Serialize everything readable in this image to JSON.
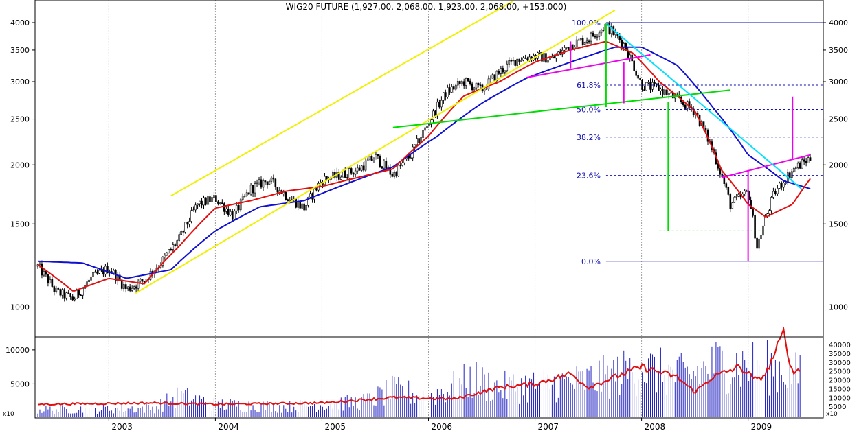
{
  "title": "WIG20 FUTURE (1,927.00, 2,068.00, 1,923.00, 2,068.00, +153.000)",
  "colors": {
    "background": "#ffffff",
    "frame": "#000000",
    "grid": "#a0a0a0",
    "candles": "#000000",
    "ma_short": "#e01010",
    "ma_long": "#1010d0",
    "channel": "#f0f000",
    "trend_green": "#00dd00",
    "trend_magenta": "#ee00ee",
    "trend_cyan": "#00e0ff",
    "fib": "#1010b0",
    "volume_bars": "#2020c0",
    "volume_avg": "#e01010"
  },
  "chart_data": [
    {
      "type": "candlestick",
      "title": "WIG20 FUTURE (1,927.00, 2,068.00, 1,923.00, 2,068.00, +153.000)",
      "x_ticks": [
        "2003",
        "2004",
        "2005",
        "2006",
        "2007",
        "2008",
        "2009"
      ],
      "x_range": [
        "2002-05",
        "2009-09"
      ],
      "y_ticks": [
        1000,
        1500,
        2000,
        2500,
        3000,
        3500,
        4000
      ],
      "y_scale": "log",
      "ylim": [
        900,
        4150
      ],
      "last": {
        "open": 1927,
        "high": 2068,
        "low": 1923,
        "close": 2068,
        "change": 153
      },
      "price_path": [
        [
          "2002-05",
          1220
        ],
        [
          "2002-07",
          1080
        ],
        [
          "2002-09",
          1040
        ],
        [
          "2002-11",
          1150
        ],
        [
          "2003-01",
          1210
        ],
        [
          "2003-03",
          1090
        ],
        [
          "2003-05",
          1140
        ],
        [
          "2003-07",
          1250
        ],
        [
          "2003-09",
          1400
        ],
        [
          "2003-11",
          1650
        ],
        [
          "2004-01",
          1700
        ],
        [
          "2004-03",
          1560
        ],
        [
          "2004-05",
          1780
        ],
        [
          "2004-07",
          1860
        ],
        [
          "2004-09",
          1720
        ],
        [
          "2004-11",
          1620
        ],
        [
          "2005-01",
          1860
        ],
        [
          "2005-03",
          1900
        ],
        [
          "2005-05",
          1950
        ],
        [
          "2005-07",
          2080
        ],
        [
          "2005-09",
          1900
        ],
        [
          "2005-11",
          2100
        ],
        [
          "2006-01",
          2450
        ],
        [
          "2006-03",
          2850
        ],
        [
          "2006-05",
          3000
        ],
        [
          "2006-07",
          2880
        ],
        [
          "2006-09",
          3150
        ],
        [
          "2006-11",
          3350
        ],
        [
          "2007-01",
          3400
        ],
        [
          "2007-03",
          3350
        ],
        [
          "2007-05",
          3600
        ],
        [
          "2007-07",
          3700
        ],
        [
          "2007-09",
          3950
        ],
        [
          "2007-11",
          3600
        ],
        [
          "2008-01",
          2950
        ],
        [
          "2008-03",
          2900
        ],
        [
          "2008-05",
          2750
        ],
        [
          "2008-07",
          2600
        ],
        [
          "2008-09",
          2150
        ],
        [
          "2008-11",
          1650
        ],
        [
          "2009-01",
          1750
        ],
        [
          "2009-02",
          1340
        ],
        [
          "2009-04",
          1750
        ],
        [
          "2009-06",
          1950
        ],
        [
          "2009-08",
          2068
        ]
      ],
      "ma_short": [
        [
          "2002-05",
          1230
        ],
        [
          "2002-09",
          1080
        ],
        [
          "2003-01",
          1150
        ],
        [
          "2003-05",
          1120
        ],
        [
          "2003-09",
          1350
        ],
        [
          "2004-01",
          1620
        ],
        [
          "2004-05",
          1680
        ],
        [
          "2004-09",
          1760
        ],
        [
          "2005-01",
          1800
        ],
        [
          "2005-05",
          1880
        ],
        [
          "2005-09",
          1960
        ],
        [
          "2006-01",
          2300
        ],
        [
          "2006-05",
          2800
        ],
        [
          "2006-09",
          3000
        ],
        [
          "2007-01",
          3300
        ],
        [
          "2007-05",
          3500
        ],
        [
          "2007-09",
          3650
        ],
        [
          "2007-12",
          3450
        ],
        [
          "2008-03",
          3000
        ],
        [
          "2008-07",
          2600
        ],
        [
          "2008-10",
          1950
        ],
        [
          "2009-01",
          1650
        ],
        [
          "2009-03",
          1550
        ],
        [
          "2009-06",
          1650
        ],
        [
          "2009-08",
          1870
        ]
      ],
      "ma_long": [
        [
          "2002-05",
          1250
        ],
        [
          "2002-10",
          1240
        ],
        [
          "2003-03",
          1150
        ],
        [
          "2003-08",
          1200
        ],
        [
          "2004-01",
          1450
        ],
        [
          "2004-06",
          1630
        ],
        [
          "2004-11",
          1680
        ],
        [
          "2005-04",
          1830
        ],
        [
          "2005-09",
          1980
        ],
        [
          "2006-02",
          2300
        ],
        [
          "2006-07",
          2700
        ],
        [
          "2006-12",
          3050
        ],
        [
          "2007-05",
          3300
        ],
        [
          "2007-10",
          3550
        ],
        [
          "2008-01",
          3550
        ],
        [
          "2008-05",
          3250
        ],
        [
          "2008-09",
          2650
        ],
        [
          "2009-01",
          2100
        ],
        [
          "2009-05",
          1850
        ],
        [
          "2009-08",
          1780
        ]
      ],
      "lines": [
        {
          "color": "channel",
          "from": [
            "2003-04",
            1070
          ],
          "to": [
            "2007-10",
            4250
          ]
        },
        {
          "color": "channel",
          "from": [
            "2003-08",
            1720
          ],
          "to": [
            "2008-02",
            6500
          ]
        },
        {
          "color": "trend_green",
          "from": [
            "2005-09",
            2400
          ],
          "to": [
            "2008-11",
            2880
          ]
        },
        {
          "color": "trend_magenta",
          "from": [
            "2006-12",
            3060
          ],
          "to": [
            "2008-02",
            3420
          ]
        },
        {
          "color": "trend_magenta",
          "from": [
            "2008-10",
            1880
          ],
          "to": [
            "2009-08",
            2100
          ]
        },
        {
          "color": "trend_cyan",
          "from": [
            "2007-09",
            3980
          ],
          "to": [
            "2009-07",
            1780
          ]
        },
        {
          "color": "trend_green",
          "from": [
            "2007-09",
            3980
          ],
          "to": [
            "2007-09",
            2650
          ]
        },
        {
          "color": "trend_green",
          "from": [
            "2008-04",
            2720
          ],
          "to": [
            "2008-04",
            1450
          ]
        },
        {
          "color": "trend_magenta",
          "from": [
            "2007-05",
            3650
          ],
          "to": [
            "2007-05",
            3200
          ]
        },
        {
          "color": "trend_magenta",
          "from": [
            "2007-11",
            3300
          ],
          "to": [
            "2007-11",
            2700
          ]
        },
        {
          "color": "trend_magenta",
          "from": [
            "2009-01",
            1950
          ],
          "to": [
            "2009-01",
            1250
          ]
        },
        {
          "color": "trend_magenta",
          "from": [
            "2009-06",
            2790
          ],
          "to": [
            "2009-06",
            2050
          ]
        }
      ],
      "dashed_support": {
        "value": 1450,
        "from": "2008-03",
        "to": "2009-03"
      },
      "fibonacci": {
        "high": 4000,
        "low": 1250,
        "from": "2007-09",
        "levels": [
          {
            "label": "100.0%",
            "value": 4000
          },
          {
            "label": "61.8%",
            "value": 2950
          },
          {
            "label": "50.0%",
            "value": 2620
          },
          {
            "label": "38.2%",
            "value": 2290
          },
          {
            "label": "23.6%",
            "value": 1900
          },
          {
            "label": "0.0%",
            "value": 1250
          }
        ]
      }
    },
    {
      "type": "bar",
      "name": "volume",
      "left_ticks": [
        5000,
        10000
      ],
      "left_unit": "x10",
      "right_ticks": [
        5000,
        10000,
        15000,
        20000,
        25000,
        30000,
        35000,
        40000
      ],
      "right_unit": "x10",
      "bar_profile": [
        [
          "2002-05",
          1500
        ],
        [
          "2003-06",
          1800
        ],
        [
          "2003-09",
          4000
        ],
        [
          "2004-01",
          2500
        ],
        [
          "2004-09",
          2000
        ],
        [
          "2005-06",
          3000
        ],
        [
          "2005-09",
          5000
        ],
        [
          "2006-01",
          4000
        ],
        [
          "2006-06",
          7000
        ],
        [
          "2006-09",
          5500
        ],
        [
          "2007-01",
          6000
        ],
        [
          "2007-06",
          6500
        ],
        [
          "2007-09",
          7500
        ],
        [
          "2008-01",
          9000
        ],
        [
          "2008-06",
          7500
        ],
        [
          "2008-10",
          10000
        ],
        [
          "2009-01",
          9500
        ],
        [
          "2009-05",
          9000
        ],
        [
          "2009-07",
          7500
        ]
      ],
      "average_profile": [
        [
          "2002-05",
          2000
        ],
        [
          "2003-06",
          2200
        ],
        [
          "2004-01",
          2000
        ],
        [
          "2005-01",
          2200
        ],
        [
          "2005-09",
          3000
        ],
        [
          "2006-04",
          2800
        ],
        [
          "2006-09",
          4500
        ],
        [
          "2007-01",
          5000
        ],
        [
          "2007-05",
          6500
        ],
        [
          "2007-07",
          4500
        ],
        [
          "2007-09",
          5500
        ],
        [
          "2008-01",
          7500
        ],
        [
          "2008-05",
          6000
        ],
        [
          "2008-07",
          3800
        ],
        [
          "2008-09",
          6000
        ],
        [
          "2008-12",
          7500
        ],
        [
          "2009-02",
          5500
        ],
        [
          "2009-03",
          6500
        ],
        [
          "2009-05",
          12500
        ],
        [
          "2009-06",
          6500
        ],
        [
          "2009-07",
          7500
        ]
      ]
    }
  ]
}
